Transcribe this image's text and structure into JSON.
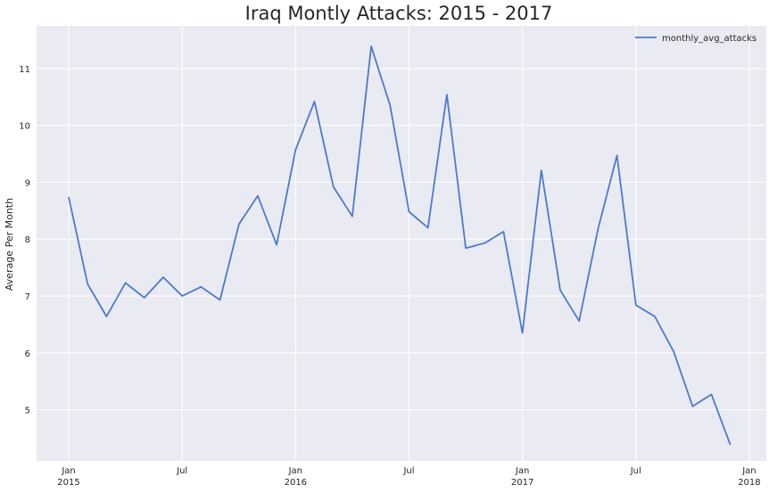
{
  "chart_data": {
    "type": "line",
    "title": "Iraq Montly Attacks: 2015 - 2017",
    "xlabel": "",
    "ylabel": "Average Per Month",
    "x_unit": "month_index_from_2015_01",
    "xlim": [
      -1.7,
      36.9
    ],
    "ylim": [
      4.1,
      11.75
    ],
    "grid": true,
    "legend_position": "top-right",
    "y_ticks": [
      5,
      6,
      7,
      8,
      9,
      10,
      11
    ],
    "x_ticks": [
      {
        "pos": 0,
        "label": "Jan",
        "sublabel": "2015"
      },
      {
        "pos": 6,
        "label": "Jul",
        "sublabel": ""
      },
      {
        "pos": 12,
        "label": "Jan",
        "sublabel": "2016"
      },
      {
        "pos": 18,
        "label": "Jul",
        "sublabel": ""
      },
      {
        "pos": 24,
        "label": "Jan",
        "sublabel": "2017"
      },
      {
        "pos": 30,
        "label": "Jul",
        "sublabel": ""
      },
      {
        "pos": 36,
        "label": "Jan",
        "sublabel": "2018"
      }
    ],
    "series": [
      {
        "name": "monthly_avg_attacks",
        "color": "#4878CF",
        "x": [
          0,
          1,
          2,
          3,
          4,
          5,
          6,
          7,
          8,
          9,
          10,
          11,
          12,
          13,
          14,
          15,
          16,
          17,
          18,
          19,
          20,
          21,
          22,
          23,
          24,
          25,
          26,
          27,
          28,
          29,
          30,
          31,
          32,
          33,
          34,
          35
        ],
        "values": [
          8.74,
          7.21,
          6.64,
          7.23,
          6.97,
          7.33,
          7.0,
          7.16,
          6.93,
          8.26,
          8.76,
          7.9,
          9.57,
          10.42,
          8.92,
          8.4,
          11.39,
          10.35,
          8.48,
          8.2,
          10.54,
          7.84,
          7.93,
          8.13,
          6.35,
          9.21,
          7.1,
          6.56,
          8.18,
          9.47,
          6.84,
          6.64,
          6.02,
          5.06,
          5.27,
          4.38
        ]
      }
    ]
  },
  "colors": {
    "plot_background": "#EAEAF2",
    "grid": "#FFFFFF",
    "text": "#262626"
  }
}
